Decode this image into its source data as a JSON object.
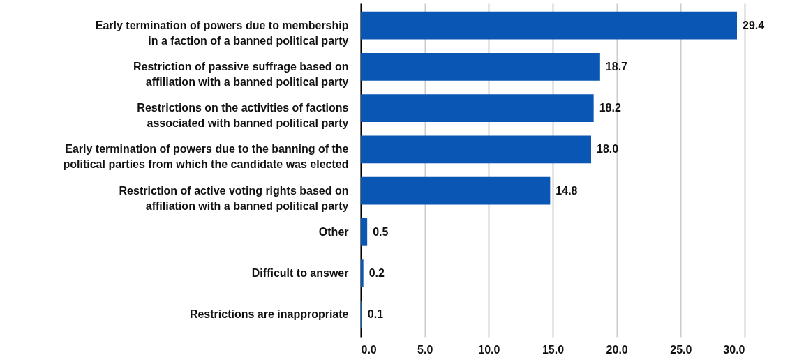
{
  "chart_data": {
    "type": "bar",
    "orientation": "horizontal",
    "categories": [
      "Early termination of powers due to membership in a faction of a banned political party",
      "Restriction of passive suffrage based on affiliation with a banned political party",
      "Restrictions on the activities of factions associated with banned political party",
      "Early termination of powers due to the banning of the political parties from which the candidate was elected",
      "Restriction of active voting rights based on affiliation with a banned political party",
      "Other",
      "Difficult to answer",
      "Restrictions are inappropriate"
    ],
    "values": [
      29.4,
      18.7,
      18.2,
      18.0,
      14.8,
      0.5,
      0.2,
      0.1
    ],
    "value_labels": [
      "29.4",
      "18.7",
      "18.2",
      "18.0",
      "14.8",
      "0.5",
      "0.2",
      "0.1"
    ],
    "color": "#0a56b4",
    "xlim": [
      0,
      30
    ],
    "xticks": [
      {
        "value": 0,
        "label": "0.0"
      },
      {
        "value": 5,
        "label": "5.0"
      },
      {
        "value": 10,
        "label": "10.0"
      },
      {
        "value": 15,
        "label": "15.0"
      },
      {
        "value": 20,
        "label": "20.0"
      },
      {
        "value": 25,
        "label": "25.0"
      },
      {
        "value": 30,
        "label": "30.0"
      }
    ],
    "grid": "x"
  }
}
